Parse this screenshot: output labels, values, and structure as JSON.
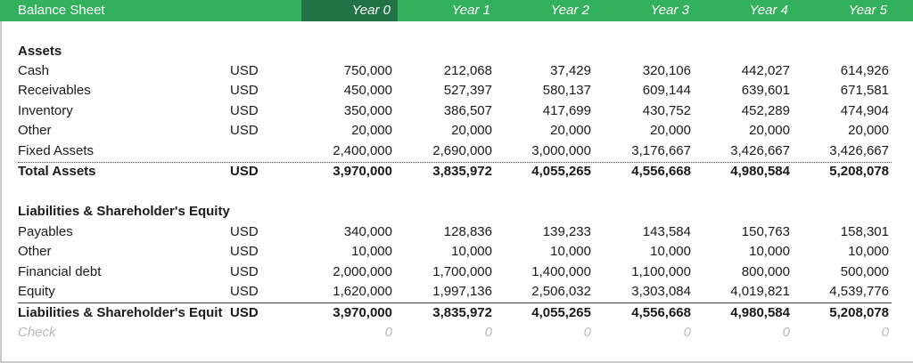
{
  "header": {
    "title": "Balance Sheet",
    "years": [
      "Year 0",
      "Year 1",
      "Year 2",
      "Year 3",
      "Year 4",
      "Year 5"
    ],
    "accent": "#33b05c",
    "selected_fill": "#217346"
  },
  "assets": {
    "section_title": "Assets",
    "rows": [
      {
        "label": "Cash",
        "unit": "USD",
        "values": [
          "750,000",
          "212,068",
          "37,429",
          "320,106",
          "442,027",
          "614,926"
        ]
      },
      {
        "label": "Receivables",
        "unit": "USD",
        "values": [
          "450,000",
          "527,397",
          "580,137",
          "609,144",
          "639,601",
          "671,581"
        ]
      },
      {
        "label": "Inventory",
        "unit": "USD",
        "values": [
          "350,000",
          "386,507",
          "417,699",
          "430,752",
          "452,289",
          "474,904"
        ]
      },
      {
        "label": "Other",
        "unit": "USD",
        "values": [
          "20,000",
          "20,000",
          "20,000",
          "20,000",
          "20,000",
          "20,000"
        ]
      },
      {
        "label": "Fixed Assets",
        "unit": "",
        "values": [
          "2,400,000",
          "2,690,000",
          "3,000,000",
          "3,176,667",
          "3,426,667",
          "3,426,667"
        ]
      }
    ],
    "total": {
      "label": "Total Assets",
      "unit": "USD",
      "values": [
        "3,970,000",
        "3,835,972",
        "4,055,265",
        "4,556,668",
        "4,980,584",
        "5,208,078"
      ]
    }
  },
  "liabilities": {
    "section_title": "Liabilities & Shareholder's Equity",
    "rows": [
      {
        "label": "Payables",
        "unit": "USD",
        "values": [
          "340,000",
          "128,836",
          "139,233",
          "143,584",
          "150,763",
          "158,301"
        ]
      },
      {
        "label": "Other",
        "unit": "USD",
        "values": [
          "10,000",
          "10,000",
          "10,000",
          "10,000",
          "10,000",
          "10,000"
        ]
      },
      {
        "label": "Financial debt",
        "unit": "USD",
        "values": [
          "2,000,000",
          "1,700,000",
          "1,400,000",
          "1,100,000",
          "800,000",
          "500,000"
        ]
      },
      {
        "label": "Equity",
        "unit": "USD",
        "values": [
          "1,620,000",
          "1,997,136",
          "2,506,032",
          "3,303,084",
          "4,019,821",
          "4,539,776"
        ]
      }
    ],
    "total": {
      "label": "Liabilities & Shareholder's Equit",
      "unit": "USD",
      "values": [
        "3,970,000",
        "3,835,972",
        "4,055,265",
        "4,556,668",
        "4,980,584",
        "5,208,078"
      ]
    }
  },
  "check": {
    "label": "Check",
    "values": [
      "0",
      "0",
      "0",
      "0",
      "0",
      "0"
    ]
  }
}
